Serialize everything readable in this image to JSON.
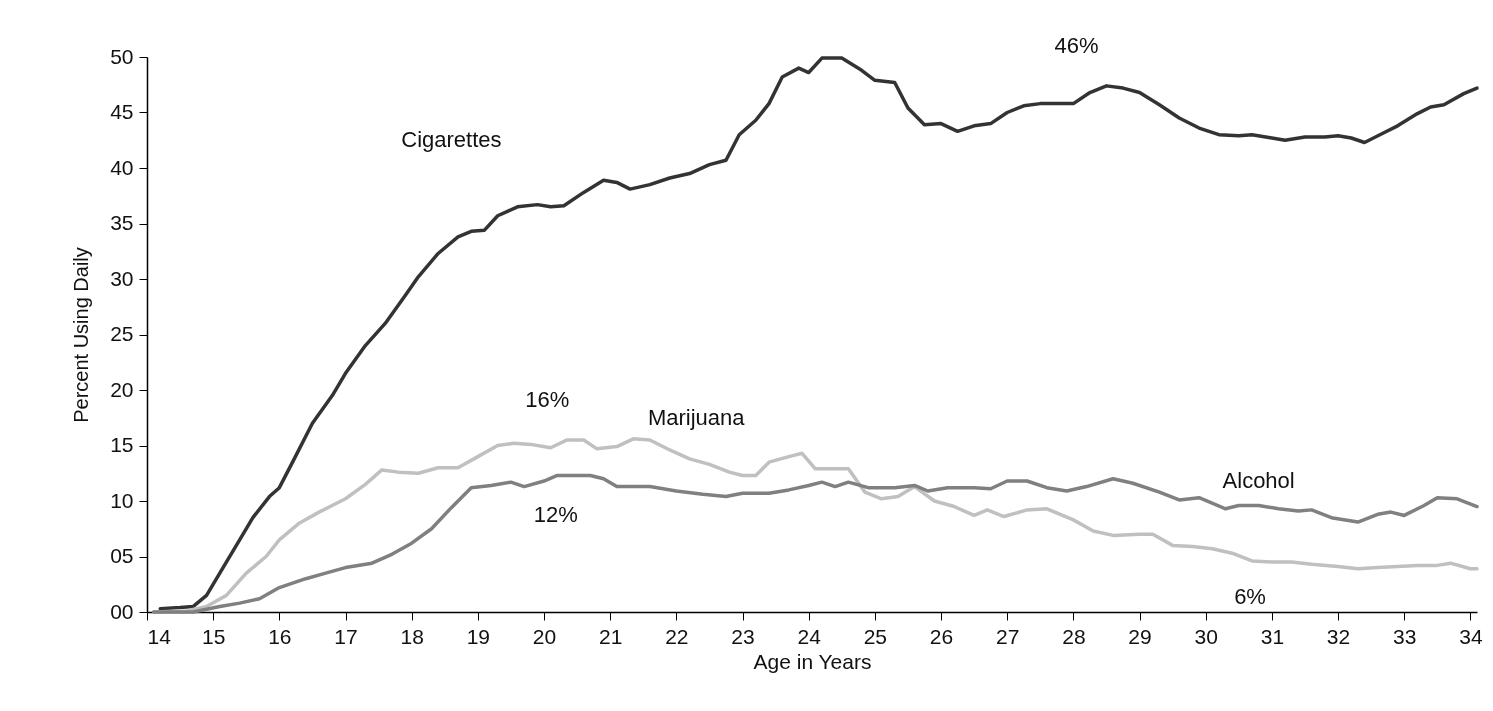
{
  "chart_data": {
    "type": "line",
    "xlabel": "Age in Years",
    "ylabel": "Percent Using Daily",
    "xlim": [
      14,
      34.1
    ],
    "ylim": [
      0,
      50
    ],
    "xticks": [
      14,
      15,
      16,
      17,
      18,
      19,
      20,
      21,
      22,
      23,
      24,
      25,
      26,
      27,
      28,
      29,
      30,
      31,
      32,
      33,
      34
    ],
    "yticks": [
      {
        "value": 0,
        "label": "00"
      },
      {
        "value": 5,
        "label": "05"
      },
      10,
      15,
      20,
      25,
      30,
      35,
      40,
      45,
      50
    ],
    "grid": false,
    "marker": "none",
    "line_style": "solid",
    "series": [
      {
        "name": "Cigarettes",
        "color": "#333333",
        "x": [
          14.2,
          14.5,
          14.7,
          14.9,
          15.1,
          15.4,
          15.6,
          15.85,
          16.0,
          16.2,
          16.5,
          16.8,
          17.0,
          17.3,
          17.6,
          17.9,
          18.1,
          18.4,
          18.7,
          18.9,
          19.1,
          19.3,
          19.6,
          19.9,
          20.1,
          20.3,
          20.6,
          20.9,
          21.1,
          21.3,
          21.6,
          21.9,
          22.2,
          22.5,
          22.75,
          22.95,
          23.2,
          23.4,
          23.6,
          23.85,
          24.0,
          24.2,
          24.5,
          24.8,
          25.0,
          25.3,
          25.5,
          25.75,
          26.0,
          26.25,
          26.5,
          26.75,
          27.0,
          27.25,
          27.5,
          27.75,
          28.0,
          28.25,
          28.5,
          28.75,
          29.0,
          29.3,
          29.6,
          29.9,
          30.2,
          30.5,
          30.7,
          31.0,
          31.2,
          31.5,
          31.8,
          32.0,
          32.2,
          32.4,
          32.7,
          32.9,
          33.2,
          33.4,
          33.6,
          33.9,
          34.1
        ],
        "values": [
          0.3,
          0.4,
          0.5,
          1.5,
          3.5,
          6.5,
          8.5,
          10.4,
          11.2,
          13.5,
          17,
          19.5,
          21.5,
          24,
          26,
          28.5,
          30.2,
          32.3,
          33.8,
          34.3,
          34.4,
          35.7,
          36.5,
          36.7,
          36.5,
          36.6,
          37.8,
          38.9,
          38.7,
          38.1,
          38.5,
          39.1,
          39.5,
          40.3,
          40.7,
          43,
          44.3,
          45.8,
          48.2,
          49,
          48.6,
          49.9,
          49.9,
          48.8,
          47.9,
          47.7,
          45.4,
          43.9,
          44,
          43.3,
          43.8,
          44,
          45,
          45.6,
          45.8,
          45.8,
          45.8,
          46.8,
          47.4,
          47.2,
          46.8,
          45.7,
          44.5,
          43.6,
          43.0,
          42.9,
          43.0,
          42.7,
          42.5,
          42.8,
          42.8,
          42.9,
          42.7,
          42.3,
          43.2,
          43.8,
          44.9,
          45.5,
          45.7,
          46.7,
          47.2
        ]
      },
      {
        "name": "Marijuana",
        "color": "#c0c0c0",
        "x": [
          14.1,
          14.6,
          14.9,
          15.2,
          15.5,
          15.8,
          16.0,
          16.3,
          16.6,
          17.0,
          17.3,
          17.55,
          17.8,
          18.1,
          18.4,
          18.7,
          19.0,
          19.3,
          19.55,
          19.8,
          20.1,
          20.35,
          20.6,
          20.8,
          21.1,
          21.35,
          21.6,
          21.9,
          22.2,
          22.5,
          22.8,
          23.0,
          23.2,
          23.4,
          23.7,
          23.9,
          24.1,
          24.4,
          24.6,
          24.85,
          25.1,
          25.35,
          25.6,
          25.9,
          26.2,
          26.5,
          26.7,
          26.95,
          27.3,
          27.6,
          28.0,
          28.3,
          28.6,
          29.0,
          29.2,
          29.5,
          29.8,
          30.1,
          30.4,
          30.7,
          31.0,
          31.3,
          31.6,
          32.0,
          32.3,
          32.6,
          32.9,
          33.2,
          33.5,
          33.7,
          34.0,
          34.1
        ],
        "values": [
          0,
          0.1,
          0.5,
          1.5,
          3.5,
          5,
          6.5,
          8,
          9,
          10.2,
          11.5,
          12.8,
          12.6,
          12.5,
          13,
          13,
          14,
          15,
          15.2,
          15.1,
          14.8,
          15.5,
          15.5,
          14.7,
          14.9,
          15.6,
          15.5,
          14.6,
          13.8,
          13.3,
          12.6,
          12.3,
          12.3,
          13.5,
          14,
          14.3,
          12.9,
          12.9,
          12.9,
          10.8,
          10.2,
          10.4,
          11.3,
          10,
          9.5,
          8.7,
          9.2,
          8.6,
          9.2,
          9.3,
          8.3,
          7.3,
          6.9,
          7.0,
          7.0,
          6.0,
          5.9,
          5.7,
          5.3,
          4.6,
          4.5,
          4.5,
          4.3,
          4.1,
          3.9,
          4.0,
          4.1,
          4.2,
          4.2,
          4.4,
          3.9,
          3.9
        ]
      },
      {
        "name": "Alcohol",
        "color": "#808080",
        "x": [
          14.1,
          14.7,
          15.1,
          15.4,
          15.7,
          16.0,
          16.4,
          16.7,
          17.0,
          17.4,
          17.7,
          18.0,
          18.3,
          18.6,
          18.9,
          19.2,
          19.5,
          19.7,
          20.0,
          20.2,
          20.7,
          20.9,
          21.1,
          21.6,
          22.0,
          22.4,
          22.75,
          23.0,
          23.4,
          23.7,
          24.0,
          24.2,
          24.4,
          24.6,
          24.9,
          25.3,
          25.6,
          25.8,
          26.1,
          26.5,
          26.75,
          27.0,
          27.3,
          27.6,
          27.9,
          28.2,
          28.6,
          28.9,
          29.3,
          29.6,
          29.9,
          30.3,
          30.5,
          30.8,
          31.1,
          31.4,
          31.6,
          31.9,
          32.3,
          32.6,
          32.8,
          33.0,
          33.3,
          33.5,
          33.8,
          34.1
        ],
        "values": [
          0,
          0,
          0.5,
          0.8,
          1.2,
          2.2,
          3,
          3.5,
          4,
          4.4,
          5.2,
          6.2,
          7.5,
          9.4,
          11.2,
          11.4,
          11.7,
          11.3,
          11.8,
          12.3,
          12.3,
          12,
          11.3,
          11.3,
          10.9,
          10.6,
          10.4,
          10.7,
          10.7,
          11,
          11.4,
          11.7,
          11.3,
          11.7,
          11.2,
          11.2,
          11.4,
          10.9,
          11.2,
          11.2,
          11.1,
          11.8,
          11.8,
          11.2,
          10.9,
          11.3,
          12,
          11.6,
          10.8,
          10.1,
          10.3,
          9.3,
          9.6,
          9.6,
          9.3,
          9.1,
          9.2,
          8.5,
          8.1,
          8.8,
          9,
          8.7,
          9.6,
          10.3,
          10.2,
          9.5
        ]
      }
    ],
    "annotations": [
      {
        "text": "46%",
        "x": 28.5,
        "y": 47.4
      },
      {
        "text": "16%",
        "x": 20.35,
        "y": 15.5
      },
      {
        "text": "12%",
        "x": 20.3,
        "y": 12.3
      },
      {
        "text": "6%",
        "x": 30.7,
        "y": 4.6
      }
    ]
  }
}
